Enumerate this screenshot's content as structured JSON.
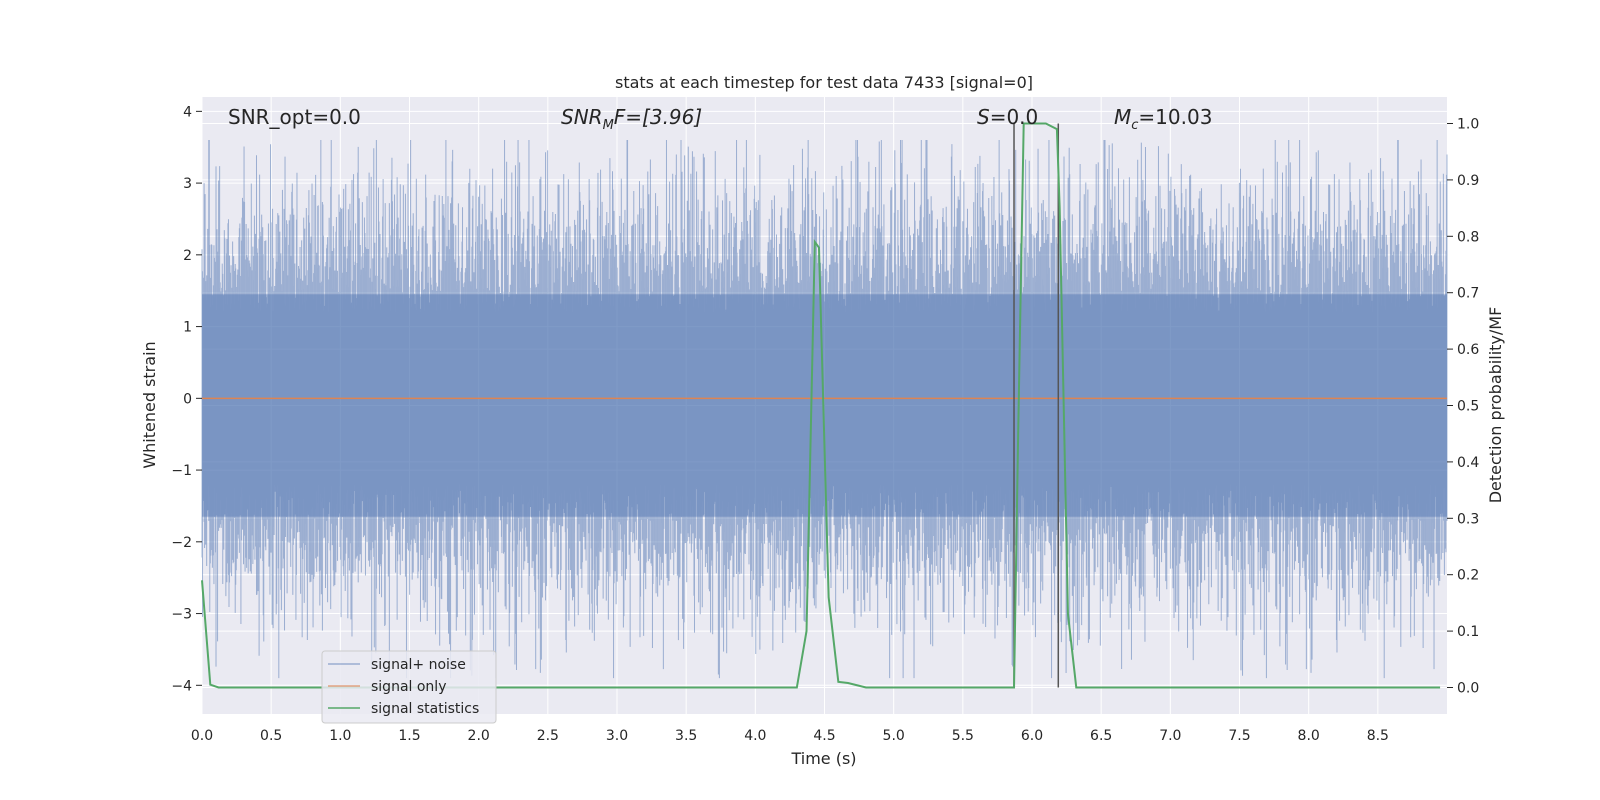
{
  "chart_data": {
    "type": "line",
    "title": "stats at each timestep for test data 7433 [signal=0]",
    "xlabel": "Time (s)",
    "ylabel_left": "Whitened strain",
    "ylabel_right": "Detection probability/MF",
    "xlim": [
      0.0,
      9.0
    ],
    "ylim_left": [
      -4.4,
      4.2
    ],
    "ylim_right": [
      -0.047,
      1.047
    ],
    "xticks": [
      "0.0",
      "0.5",
      "1.0",
      "1.5",
      "2.0",
      "2.5",
      "3.0",
      "3.5",
      "4.0",
      "4.5",
      "5.0",
      "5.5",
      "6.0",
      "6.5",
      "7.0",
      "7.5",
      "8.0",
      "8.5"
    ],
    "yticks_left": [
      "−4",
      "−3",
      "−2",
      "−1",
      "0",
      "1",
      "2",
      "3",
      "4"
    ],
    "yticks_right": [
      "0.0",
      "0.1",
      "0.2",
      "0.3",
      "0.4",
      "0.5",
      "0.6",
      "0.7",
      "0.8",
      "0.9",
      "1.0"
    ],
    "grid": true,
    "legend_position": "lower-left",
    "annotations": {
      "snr_opt": "SNR_opt=0.0",
      "snr_mf_main": "SNR",
      "snr_mf_sub": "M",
      "snr_mf_rest": "F=[3.96]",
      "s_italic": "S",
      "s_rest": "=0.0",
      "mc_italic": "M",
      "mc_sub": "c",
      "mc_rest": "=10.03"
    },
    "vertical_lines_x": [
      5.87,
      6.19
    ],
    "series": [
      {
        "name": "signal+ noise",
        "color": "#4c72b0",
        "axis": "left",
        "style": "dense noise, sampling 4096 Hz, whitened, amplitude approx ±1.5 body with peaks to about ±3.5",
        "seed": 7433
      },
      {
        "name": "signal only",
        "color": "#dd8452",
        "axis": "left",
        "x": [
          0.0,
          9.0
        ],
        "y": [
          0.0,
          0.0
        ]
      },
      {
        "name": "signal statistics",
        "color": "#55a868",
        "axis": "right",
        "x": [
          0.0,
          0.06,
          0.12,
          0.5,
          1.0,
          2.0,
          3.0,
          4.0,
          4.3,
          4.37,
          4.43,
          4.46,
          4.53,
          4.6,
          4.67,
          4.8,
          5.0,
          5.5,
          5.85,
          5.87,
          5.9,
          5.94,
          6.0,
          6.1,
          6.18,
          6.2,
          6.26,
          6.32,
          6.5,
          7.0,
          8.0,
          8.5,
          8.95
        ],
        "y": [
          0.19,
          0.005,
          0.0,
          0.0,
          0.0,
          0.0,
          0.0,
          0.0,
          0.0,
          0.1,
          0.79,
          0.78,
          0.16,
          0.01,
          0.008,
          0.0,
          0.0,
          0.0,
          0.0,
          0.0,
          0.45,
          1.0,
          1.0,
          1.0,
          0.99,
          0.85,
          0.13,
          0.0,
          0.0,
          0.0,
          0.0,
          0.0,
          0.0
        ]
      }
    ]
  }
}
